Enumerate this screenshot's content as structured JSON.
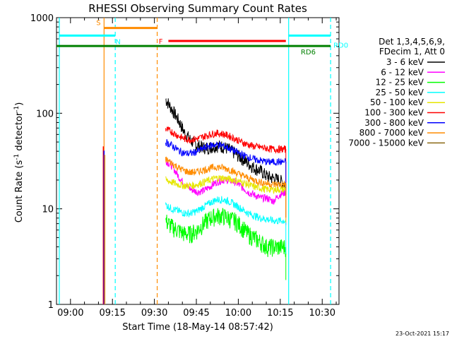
{
  "chart_data": {
    "type": "line",
    "title": "RHESSI Observing Summary Count Rates",
    "xlabel": "Start Time (18-May-14 08:57:42)",
    "ylabel_main": "Count Rate (s",
    "ylabel_sup1": "-1",
    "ylabel_mid": " detector",
    "ylabel_sup2": "-1",
    "ylabel_end": ")",
    "y_scale": "log",
    "ylim": [
      1,
      1000
    ],
    "xlim": [
      "08:55",
      "10:36"
    ],
    "x_ticks": [
      "09:00",
      "09:15",
      "09:30",
      "09:45",
      "10:00",
      "10:15",
      "10:30"
    ],
    "y_ticks": [
      "1",
      "10",
      "100",
      "1000"
    ],
    "legend_header": [
      "Det 1,3,4,5,6,9,",
      "FDecim 1, Att 0"
    ],
    "legend_position": "right",
    "series": [
      {
        "name": "3 - 6 keV",
        "color": "#000000",
        "start": "09:34",
        "values": [
          140,
          110,
          85,
          62,
          52,
          46,
          44,
          44,
          46,
          45,
          42,
          38,
          34,
          30,
          27,
          25,
          22,
          21,
          20,
          18
        ]
      },
      {
        "name": "6 - 12 keV",
        "color": "#ff00ff",
        "start": "09:34",
        "values": [
          32,
          28,
          22,
          18,
          16,
          15,
          15.5,
          17,
          19,
          20,
          20,
          19,
          17,
          15,
          14,
          13,
          13,
          12,
          14,
          15
        ]
      },
      {
        "name": "12 - 25 keV",
        "color": "#00ff00",
        "start": "09:34",
        "values": [
          7.5,
          6.5,
          6,
          5.5,
          5.5,
          6,
          7,
          8,
          8.5,
          8.5,
          8,
          7.5,
          6.5,
          5.5,
          5,
          4.5,
          4,
          4,
          4,
          4
        ]
      },
      {
        "name": "25 - 50 keV",
        "color": "#00ffff",
        "start": "09:34",
        "values": [
          11,
          10,
          9.5,
          9,
          9,
          9.5,
          10.5,
          11.5,
          12.5,
          12.5,
          12,
          11,
          10,
          9,
          8.5,
          8,
          7.8,
          7.5,
          7.5,
          7.5
        ]
      },
      {
        "name": "50 - 100 keV",
        "color": "#e6e600",
        "start": "09:34",
        "values": [
          20,
          19,
          18,
          17.5,
          17.5,
          18,
          19,
          20,
          21,
          21,
          20.5,
          20,
          19,
          18,
          17,
          16.5,
          16,
          16,
          16,
          16
        ]
      },
      {
        "name": "100 - 300 keV",
        "color": "#ff0000",
        "start": "09:34",
        "values": [
          68,
          64,
          58,
          54,
          53,
          54,
          57,
          60,
          62,
          61,
          58,
          54,
          50,
          47,
          45,
          44,
          43,
          42,
          42,
          42
        ]
      },
      {
        "name": "300 - 800 keV",
        "color": "#0000ff",
        "start": "09:34",
        "values": [
          50,
          46,
          41,
          38,
          38,
          40,
          43,
          46,
          47,
          46,
          43,
          40,
          37,
          35,
          33,
          32,
          31,
          31,
          31,
          31
        ]
      },
      {
        "name": "800 - 7000 keV",
        "color": "#ff8c00",
        "start": "09:34",
        "values": [
          33,
          30,
          27,
          25,
          24,
          24.5,
          25.5,
          26.5,
          27.5,
          27,
          26,
          24,
          22.5,
          21,
          20,
          19,
          18.5,
          18,
          18,
          18
        ]
      },
      {
        "name": "7000 - 15000 keV",
        "color": "#8b6914",
        "start": "09:34",
        "values": []
      }
    ],
    "spike": {
      "time": "09:12",
      "colors": [
        "#ff0000",
        "#0000ff",
        "#ff8c00"
      ],
      "peak": 45
    },
    "vlines": [
      {
        "time": "08:56",
        "style": "solid",
        "color": "#00ffff"
      },
      {
        "time": "09:12",
        "style": "solid",
        "color": "#ff8c00"
      },
      {
        "time": "09:16",
        "style": "dashed",
        "color": "#00ffff"
      },
      {
        "time": "09:31",
        "style": "dashed",
        "color": "#ff8c00"
      },
      {
        "time": "10:18",
        "style": "solid",
        "color": "#00ffff"
      },
      {
        "time": "10:33",
        "style": "dashed",
        "color": "#00ffff"
      }
    ],
    "flags": [
      {
        "label": "S",
        "color": "#ff8c00",
        "start": "09:12",
        "end": "09:31",
        "level": 780,
        "label_time": "09:10",
        "label_pos": "above"
      },
      {
        "label": "N",
        "color": "#00ffff",
        "start": "08:56",
        "end": "09:16",
        "level": 650,
        "label_time": "09:17",
        "label_pos": "below"
      },
      {
        "label": "N",
        "color": "#00ffff",
        "start": "10:18",
        "end": "10:33",
        "level": 650,
        "label_time": null,
        "label_pos": null
      },
      {
        "label": "F",
        "color": "#ff0000",
        "start": "09:35",
        "end": "10:17",
        "level": 570,
        "label_time": "09:33",
        "label_pos": "left"
      },
      {
        "label": "RD0",
        "color": "#00ffff",
        "start": "10:33",
        "end": "10:33",
        "level": 520,
        "label_time": "10:34",
        "label_pos": "right"
      },
      {
        "label": "RD6",
        "color": "#008000",
        "start": "08:55",
        "end": "10:33",
        "level": 505,
        "label_time": "10:25",
        "label_pos": "below"
      }
    ]
  },
  "footer": {
    "date": "23-Oct-2021 15:17"
  }
}
